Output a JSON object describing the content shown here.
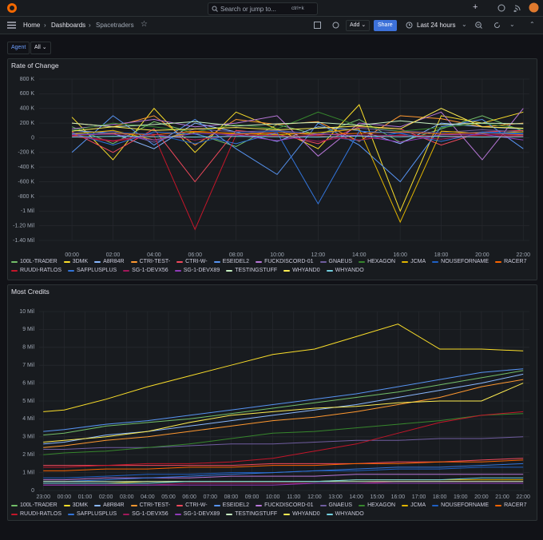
{
  "topbar": {
    "search": "Search or jump to...",
    "shortcut": "ctrl+k"
  },
  "toolbar": {
    "breadcrumbs": [
      "Home",
      "Dashboards",
      "Spacetraders"
    ],
    "add": "Add",
    "share": "Share",
    "time_range": "Last 24 hours"
  },
  "variables": {
    "label": "Agent",
    "value": "All"
  },
  "chart_data": [
    {
      "type": "line",
      "title": "Rate of Change",
      "grid": true,
      "x": [
        0,
        2,
        4,
        6,
        8,
        10,
        12,
        14,
        16,
        18,
        20,
        22
      ],
      "xlim": [
        -1.6,
        22.3
      ],
      "xticks": [
        {
          "value": 0,
          "label": "00:00"
        },
        {
          "value": 2,
          "label": "02:00"
        },
        {
          "value": 4,
          "label": "04:00"
        },
        {
          "value": 6,
          "label": "06:00"
        },
        {
          "value": 8,
          "label": "08:00"
        },
        {
          "value": 10,
          "label": "10:00"
        },
        {
          "value": 12,
          "label": "12:00"
        },
        {
          "value": 14,
          "label": "14:00"
        },
        {
          "value": 16,
          "label": "16:00"
        },
        {
          "value": 18,
          "label": "18:00"
        },
        {
          "value": 20,
          "label": "20:00"
        },
        {
          "value": 22,
          "label": "22:00"
        }
      ],
      "ylim": [
        -1400000,
        800000
      ],
      "yticks": [
        {
          "value": 800000,
          "label": "800 K"
        },
        {
          "value": 600000,
          "label": "600 K"
        },
        {
          "value": 400000,
          "label": "400 K"
        },
        {
          "value": 200000,
          "label": "200 K"
        },
        0,
        {
          "value": -200000,
          "label": "-200 K"
        },
        {
          "value": -400000,
          "label": "-400 K"
        },
        {
          "value": -600000,
          "label": "-600 K"
        },
        {
          "value": -800000,
          "label": "-800 K"
        },
        {
          "value": -1000000,
          "label": "-1 Mil"
        },
        {
          "value": -1200000,
          "label": "-1.20 Mil"
        },
        {
          "value": -1400000,
          "label": "-1.40 Mil"
        }
      ],
      "series": [
        {
          "name": "100L-TRADER",
          "color": "#73bf69",
          "values": [
            150000,
            -80000,
            220000,
            60000,
            -120000,
            180000,
            40000,
            250000,
            -60000,
            120000,
            300000,
            90000
          ]
        },
        {
          "name": "3DMK",
          "color": "#fade2a",
          "values": [
            280000,
            -300000,
            400000,
            -200000,
            350000,
            120000,
            -150000,
            450000,
            -1000000,
            300000,
            200000,
            350000
          ]
        },
        {
          "name": "A8R84R",
          "color": "#8ab8ff",
          "values": [
            100000,
            60000,
            -150000,
            200000,
            80000,
            -50000,
            150000,
            100000,
            -80000,
            200000,
            150000,
            120000
          ]
        },
        {
          "name": "CTRI-TEST-",
          "color": "#ff9830",
          "values": [
            200000,
            150000,
            300000,
            -100000,
            250000,
            180000,
            220000,
            -50000,
            300000,
            260000,
            150000,
            200000
          ]
        },
        {
          "name": "CTRI-W-",
          "color": "#f2495c",
          "values": [
            80000,
            -200000,
            120000,
            -600000,
            100000,
            50000,
            -80000,
            150000,
            120000,
            -100000,
            80000,
            100000
          ]
        },
        {
          "name": "ESEIDEL2",
          "color": "#5794f2",
          "values": [
            -200000,
            300000,
            -100000,
            250000,
            -150000,
            -500000,
            200000,
            -100000,
            -600000,
            150000,
            250000,
            -150000
          ]
        },
        {
          "name": "FUCKDISCORD-01",
          "color": "#b877d9",
          "values": [
            120000,
            180000,
            250000,
            150000,
            200000,
            300000,
            -250000,
            200000,
            150000,
            350000,
            -300000,
            400000
          ]
        },
        {
          "name": "GNAEUS",
          "color": "#705da0",
          "values": [
            60000,
            90000,
            -60000,
            120000,
            80000,
            100000,
            50000,
            130000,
            90000,
            70000,
            110000,
            80000
          ]
        },
        {
          "name": "HEXAGON",
          "color": "#37872d",
          "values": [
            100000,
            200000,
            150000,
            80000,
            180000,
            120000,
            350000,
            160000,
            90000,
            140000,
            200000,
            120000
          ]
        },
        {
          "name": "JCMA",
          "color": "#e0b400",
          "values": [
            50000,
            100000,
            -30000,
            80000,
            60000,
            40000,
            70000,
            120000,
            -1150000,
            90000,
            60000,
            80000
          ]
        },
        {
          "name": "NOUSEFORNAME",
          "color": "#1f60c4",
          "values": [
            40000,
            70000,
            50000,
            -80000,
            60000,
            90000,
            30000,
            -40000,
            70000,
            50000,
            80000,
            60000
          ]
        },
        {
          "name": "RACER7",
          "color": "#fa6400",
          "values": [
            30000,
            60000,
            40000,
            90000,
            50000,
            70000,
            40000,
            60000,
            80000,
            50000,
            70000,
            40000
          ]
        },
        {
          "name": "RUUDI-RATLOS",
          "color": "#c4162a",
          "values": [
            20000,
            -50000,
            30000,
            -1250000,
            40000,
            20000,
            30000,
            -30000,
            40000,
            20000,
            30000,
            20000
          ]
        },
        {
          "name": "SAFPLUSPLUS",
          "color": "#3274d9",
          "values": [
            60000,
            -100000,
            80000,
            50000,
            -80000,
            70000,
            -900000,
            90000,
            60000,
            -50000,
            70000,
            50000
          ]
        },
        {
          "name": "SG-1-DEVX56",
          "color": "#a1185a",
          "values": [
            30000,
            -40000,
            50000,
            -30000,
            40000,
            30000,
            -50000,
            40000,
            30000,
            -20000,
            50000,
            30000
          ]
        },
        {
          "name": "SG-1-DEVX89",
          "color": "#8f3bb8",
          "values": [
            40000,
            50000,
            -30000,
            60000,
            40000,
            -40000,
            50000,
            30000,
            -60000,
            40000,
            50000,
            -30000
          ]
        },
        {
          "name": "TESTINGSTUFF",
          "color": "#c8f2c2",
          "values": [
            200000,
            150000,
            180000,
            220000,
            160000,
            190000,
            210000,
            170000,
            230000,
            180000,
            200000,
            190000
          ]
        },
        {
          "name": "WHYAND0",
          "color": "#ffee52",
          "values": [
            90000,
            150000,
            100000,
            120000,
            140000,
            110000,
            130000,
            160000,
            120000,
            400000,
            150000,
            130000
          ]
        },
        {
          "name": "WHYANDO",
          "color": "#73d0e0",
          "values": [
            10000,
            20000,
            15000,
            10000,
            20000,
            15000,
            10000,
            25000,
            15000,
            20000,
            10000,
            15000
          ]
        }
      ]
    },
    {
      "type": "line",
      "title": "Most Credits",
      "grid": true,
      "x": [
        -1,
        0,
        2,
        4,
        6,
        8,
        10,
        12,
        14,
        16,
        18,
        20,
        22
      ],
      "xlim": [
        -1.2,
        22.3
      ],
      "xticks": [
        {
          "value": -1,
          "label": "23:00"
        },
        {
          "value": 0,
          "label": "00:00"
        },
        {
          "value": 1,
          "label": "01:00"
        },
        {
          "value": 2,
          "label": "02:00"
        },
        {
          "value": 3,
          "label": "03:00"
        },
        {
          "value": 4,
          "label": "04:00"
        },
        {
          "value": 5,
          "label": "05:00"
        },
        {
          "value": 6,
          "label": "06:00"
        },
        {
          "value": 7,
          "label": "07:00"
        },
        {
          "value": 8,
          "label": "08:00"
        },
        {
          "value": 9,
          "label": "09:00"
        },
        {
          "value": 10,
          "label": "10:00"
        },
        {
          "value": 11,
          "label": "11:00"
        },
        {
          "value": 12,
          "label": "12:00"
        },
        {
          "value": 13,
          "label": "13:00"
        },
        {
          "value": 14,
          "label": "14:00"
        },
        {
          "value": 15,
          "label": "15:00"
        },
        {
          "value": 16,
          "label": "16:00"
        },
        {
          "value": 17,
          "label": "17:00"
        },
        {
          "value": 18,
          "label": "18:00"
        },
        {
          "value": 19,
          "label": "19:00"
        },
        {
          "value": 20,
          "label": "20:00"
        },
        {
          "value": 21,
          "label": "21:00"
        },
        {
          "value": 22,
          "label": "22:00"
        }
      ],
      "ylim": [
        0,
        10000000
      ],
      "yticks": [
        0,
        {
          "value": 1000000,
          "label": "1 Mil"
        },
        {
          "value": 2000000,
          "label": "2 Mil"
        },
        {
          "value": 3000000,
          "label": "3 Mil"
        },
        {
          "value": 4000000,
          "label": "4 Mil"
        },
        {
          "value": 5000000,
          "label": "5 Mil"
        },
        {
          "value": 6000000,
          "label": "6 Mil"
        },
        {
          "value": 7000000,
          "label": "7 Mil"
        },
        {
          "value": 8000000,
          "label": "8 Mil"
        },
        {
          "value": 9000000,
          "label": "9 Mil"
        },
        {
          "value": 10000000,
          "label": "10 Mil"
        }
      ],
      "series": [
        {
          "name": "100L-TRADER",
          "color": "#73bf69",
          "values": [
            3100000,
            3200000,
            3600000,
            3800000,
            4000000,
            4300000,
            4600000,
            4900000,
            5200000,
            5500000,
            5900000,
            6300000,
            6700000
          ]
        },
        {
          "name": "3DMK",
          "color": "#fade2a",
          "values": [
            4400000,
            4500000,
            5100000,
            5800000,
            6400000,
            7000000,
            7600000,
            7900000,
            8600000,
            9300000,
            7900000,
            7900000,
            7800000
          ]
        },
        {
          "name": "A8R84R",
          "color": "#8ab8ff",
          "values": [
            2600000,
            2700000,
            3100000,
            3300000,
            3600000,
            3900000,
            4200000,
            4500000,
            4800000,
            5200000,
            5600000,
            6000000,
            6500000
          ]
        },
        {
          "name": "CTRI-TEST-",
          "color": "#ff9830",
          "values": [
            2400000,
            2500000,
            2800000,
            3000000,
            3300000,
            3600000,
            3900000,
            4100000,
            4400000,
            4800000,
            5200000,
            5800000,
            6200000
          ]
        },
        {
          "name": "CTRI-W-",
          "color": "#f2495c",
          "values": [
            1400000,
            1400000,
            1400000,
            1400000,
            1400000,
            1400000,
            1500000,
            1500000,
            1500000,
            1600000,
            1600000,
            1700000,
            1800000
          ]
        },
        {
          "name": "ESEIDEL2",
          "color": "#5794f2",
          "values": [
            3300000,
            3400000,
            3700000,
            3900000,
            4200000,
            4500000,
            4800000,
            5100000,
            5400000,
            5800000,
            6200000,
            6600000,
            6800000
          ]
        },
        {
          "name": "FUCKDISCORD-01",
          "color": "#b877d9",
          "values": [
            600000,
            600000,
            700000,
            700000,
            700000,
            800000,
            800000,
            800000,
            900000,
            900000,
            900000,
            900000,
            900000
          ]
        },
        {
          "name": "GNAEUS",
          "color": "#705da0",
          "values": [
            2300000,
            2300000,
            2400000,
            2400000,
            2500000,
            2600000,
            2600000,
            2700000,
            2800000,
            2800000,
            2900000,
            2900000,
            3000000
          ]
        },
        {
          "name": "HEXAGON",
          "color": "#37872d",
          "values": [
            2000000,
            2100000,
            2200000,
            2400000,
            2600000,
            2900000,
            3200000,
            3300000,
            3500000,
            3700000,
            3900000,
            4200000,
            4300000
          ]
        },
        {
          "name": "JCMA",
          "color": "#e0b400",
          "values": [
            400000,
            400000,
            400000,
            500000,
            500000,
            500000,
            500000,
            500000,
            600000,
            600000,
            600000,
            600000,
            600000
          ]
        },
        {
          "name": "NOUSEFORNAME",
          "color": "#1f60c4",
          "values": [
            700000,
            700000,
            800000,
            900000,
            900000,
            1000000,
            1000000,
            1100000,
            1100000,
            1200000,
            1200000,
            1300000,
            1300000
          ]
        },
        {
          "name": "RACER7",
          "color": "#fa6400",
          "values": [
            1100000,
            1100000,
            1200000,
            1200000,
            1300000,
            1300000,
            1400000,
            1400000,
            1500000,
            1500000,
            1600000,
            1600000,
            1700000
          ]
        },
        {
          "name": "RUUDI-RATLOS",
          "color": "#c4162a",
          "values": [
            1300000,
            1300000,
            1400000,
            1500000,
            1500000,
            1600000,
            1800000,
            2200000,
            2600000,
            3200000,
            3800000,
            4200000,
            4400000
          ]
        },
        {
          "name": "SAFPLUSPLUS",
          "color": "#3274d9",
          "values": [
            500000,
            500000,
            600000,
            700000,
            800000,
            900000,
            1000000,
            1100000,
            1200000,
            1300000,
            1300000,
            1400000,
            1500000
          ]
        },
        {
          "name": "SG-1-DEVX56",
          "color": "#a1185a",
          "values": [
            300000,
            300000,
            300000,
            300000,
            400000,
            400000,
            400000,
            400000,
            400000,
            500000,
            500000,
            500000,
            500000
          ]
        },
        {
          "name": "SG-1-DEVX89",
          "color": "#8f3bb8",
          "values": [
            300000,
            300000,
            300000,
            300000,
            300000,
            300000,
            300000,
            400000,
            400000,
            400000,
            400000,
            400000,
            400000
          ]
        },
        {
          "name": "TESTINGSTUFF",
          "color": "#c8f2c2",
          "values": [
            500000,
            500000,
            500000,
            500000,
            500000,
            500000,
            500000,
            500000,
            500000,
            500000,
            500000,
            500000,
            500000
          ]
        },
        {
          "name": "WHYAND0",
          "color": "#ffee52",
          "values": [
            2700000,
            2800000,
            3000000,
            3300000,
            3800000,
            4200000,
            4400000,
            4600000,
            4700000,
            4900000,
            5000000,
            5000000,
            6000000
          ]
        },
        {
          "name": "WHYANDO",
          "color": "#73d0e0",
          "values": [
            400000,
            400000,
            400000,
            400000,
            500000,
            500000,
            500000,
            500000,
            600000,
            600000,
            600000,
            700000,
            700000
          ]
        }
      ]
    }
  ]
}
